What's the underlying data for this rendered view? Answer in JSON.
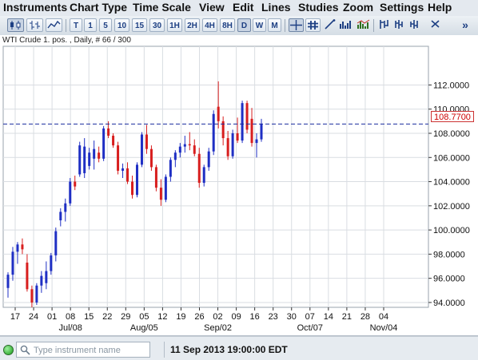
{
  "menu": [
    "Instruments",
    "Chart Type",
    "Time Scale",
    "View",
    "Edit",
    "Lines",
    "Studies",
    "Zoom",
    "Settings",
    "Help"
  ],
  "toolbar": {
    "timeframes": [
      "T",
      "1",
      "5",
      "10",
      "15",
      "30",
      "1H",
      "2H",
      "4H",
      "8H",
      "D",
      "W",
      "M"
    ],
    "active_timeframe": "D",
    "overflow_label": "»"
  },
  "chart": {
    "header": "WTI Crude 1. pos. , Daily, # 66 / 300",
    "current_price_label": "108.7700",
    "accent_color": "#1a2b9e",
    "up_color": "#1f2fc4",
    "down_color": "#d81e1e"
  },
  "chart_data": {
    "type": "candlestick",
    "title": "WTI Crude 1. pos. , Daily, # 66 / 300",
    "y_tick_labels": [
      "112.0000",
      "110.0000",
      "108.0000",
      "106.0000",
      "104.0000",
      "102.0000",
      "100.0000",
      "98.0000",
      "96.0000",
      "94.0000"
    ],
    "y_ticks": [
      112,
      110,
      108,
      106,
      104,
      102,
      100,
      98,
      96,
      94
    ],
    "ylim": [
      93.6,
      115.2
    ],
    "x_tick_labels": [
      "17",
      "24",
      "01",
      "08",
      "15",
      "22",
      "29",
      "05",
      "12",
      "19",
      "26",
      "02",
      "09",
      "16",
      "23",
      "30",
      "07",
      "14",
      "21",
      "28",
      "04"
    ],
    "x_period_labels": [
      "Jul/08",
      "Aug/05",
      "Sep/02",
      "Oct/07",
      "Nov/04"
    ],
    "current_price": 108.77,
    "grid": true,
    "candles": [
      {
        "o": 95.2,
        "h": 96.5,
        "l": 94.4,
        "c": 96.3
      },
      {
        "o": 96.3,
        "h": 98.6,
        "l": 95.8,
        "c": 98.2
      },
      {
        "o": 98.2,
        "h": 99.0,
        "l": 97.2,
        "c": 98.8
      },
      {
        "o": 98.8,
        "h": 99.3,
        "l": 98.0,
        "c": 98.4
      },
      {
        "o": 97.3,
        "h": 98.0,
        "l": 94.9,
        "c": 95.1
      },
      {
        "o": 95.1,
        "h": 95.4,
        "l": 93.6,
        "c": 94.0
      },
      {
        "o": 94.0,
        "h": 95.6,
        "l": 93.8,
        "c": 95.4
      },
      {
        "o": 95.4,
        "h": 96.6,
        "l": 94.8,
        "c": 96.2
      },
      {
        "o": 95.6,
        "h": 97.4,
        "l": 95.1,
        "c": 96.6
      },
      {
        "o": 96.6,
        "h": 98.1,
        "l": 96.3,
        "c": 97.9
      },
      {
        "o": 97.9,
        "h": 100.2,
        "l": 97.4,
        "c": 99.9
      },
      {
        "o": 100.8,
        "h": 101.8,
        "l": 100.3,
        "c": 101.5
      },
      {
        "o": 101.5,
        "h": 102.6,
        "l": 100.7,
        "c": 102.2
      },
      {
        "o": 102.2,
        "h": 104.3,
        "l": 102.0,
        "c": 104.0
      },
      {
        "o": 104.0,
        "h": 104.5,
        "l": 103.3,
        "c": 103.6
      },
      {
        "o": 104.6,
        "h": 107.3,
        "l": 104.4,
        "c": 107.0
      },
      {
        "o": 104.7,
        "h": 107.6,
        "l": 104.3,
        "c": 106.9
      },
      {
        "o": 105.3,
        "h": 106.8,
        "l": 105.0,
        "c": 106.4
      },
      {
        "o": 105.9,
        "h": 107.4,
        "l": 105.0,
        "c": 106.7
      },
      {
        "o": 106.4,
        "h": 106.9,
        "l": 105.6,
        "c": 105.9
      },
      {
        "o": 105.9,
        "h": 108.6,
        "l": 105.7,
        "c": 108.4
      },
      {
        "o": 108.4,
        "h": 109.0,
        "l": 107.6,
        "c": 107.8
      },
      {
        "o": 107.8,
        "h": 108.0,
        "l": 106.8,
        "c": 107.0
      },
      {
        "o": 107.0,
        "h": 107.3,
        "l": 104.6,
        "c": 104.9
      },
      {
        "o": 104.9,
        "h": 105.5,
        "l": 104.3,
        "c": 105.1
      },
      {
        "o": 105.1,
        "h": 105.6,
        "l": 103.8,
        "c": 104.0
      },
      {
        "o": 104.0,
        "h": 104.5,
        "l": 102.6,
        "c": 102.9
      },
      {
        "o": 102.9,
        "h": 105.6,
        "l": 102.7,
        "c": 105.4
      },
      {
        "o": 105.4,
        "h": 108.1,
        "l": 105.2,
        "c": 107.9
      },
      {
        "o": 107.9,
        "h": 108.7,
        "l": 106.3,
        "c": 106.7
      },
      {
        "o": 106.7,
        "h": 107.0,
        "l": 104.9,
        "c": 105.2
      },
      {
        "o": 105.2,
        "h": 105.4,
        "l": 103.2,
        "c": 103.5
      },
      {
        "o": 103.5,
        "h": 104.2,
        "l": 102.0,
        "c": 102.5
      },
      {
        "o": 102.5,
        "h": 104.6,
        "l": 102.3,
        "c": 104.4
      },
      {
        "o": 104.4,
        "h": 106.0,
        "l": 104.0,
        "c": 105.8
      },
      {
        "o": 105.8,
        "h": 106.6,
        "l": 105.2,
        "c": 106.4
      },
      {
        "o": 106.4,
        "h": 107.2,
        "l": 106.0,
        "c": 106.9
      },
      {
        "o": 106.9,
        "h": 107.8,
        "l": 106.4,
        "c": 107.1
      },
      {
        "o": 107.1,
        "h": 108.1,
        "l": 106.6,
        "c": 107.0
      },
      {
        "o": 107.0,
        "h": 107.5,
        "l": 106.1,
        "c": 106.3
      },
      {
        "o": 106.3,
        "h": 106.8,
        "l": 103.5,
        "c": 103.9
      },
      {
        "o": 103.9,
        "h": 105.4,
        "l": 103.6,
        "c": 105.2
      },
      {
        "o": 105.2,
        "h": 106.8,
        "l": 104.9,
        "c": 106.5
      },
      {
        "o": 106.5,
        "h": 109.9,
        "l": 106.2,
        "c": 109.6
      },
      {
        "o": 110.2,
        "h": 112.3,
        "l": 108.4,
        "c": 109.0
      },
      {
        "o": 109.0,
        "h": 109.4,
        "l": 107.0,
        "c": 107.6
      },
      {
        "o": 107.6,
        "h": 108.2,
        "l": 105.8,
        "c": 106.1
      },
      {
        "o": 106.1,
        "h": 108.3,
        "l": 105.9,
        "c": 108.0
      },
      {
        "o": 108.0,
        "h": 109.3,
        "l": 107.2,
        "c": 107.4
      },
      {
        "o": 107.4,
        "h": 110.7,
        "l": 107.2,
        "c": 110.5
      },
      {
        "o": 110.5,
        "h": 110.7,
        "l": 108.0,
        "c": 108.3
      },
      {
        "o": 109.2,
        "h": 110.1,
        "l": 106.9,
        "c": 107.2
      },
      {
        "o": 107.2,
        "h": 108.0,
        "l": 106.0,
        "c": 107.5
      },
      {
        "o": 107.5,
        "h": 109.2,
        "l": 107.3,
        "c": 108.8
      }
    ]
  },
  "status": {
    "search_placeholder": "Type instrument name",
    "timestamp": "11 Sep 2013 19:00:00 EDT"
  }
}
